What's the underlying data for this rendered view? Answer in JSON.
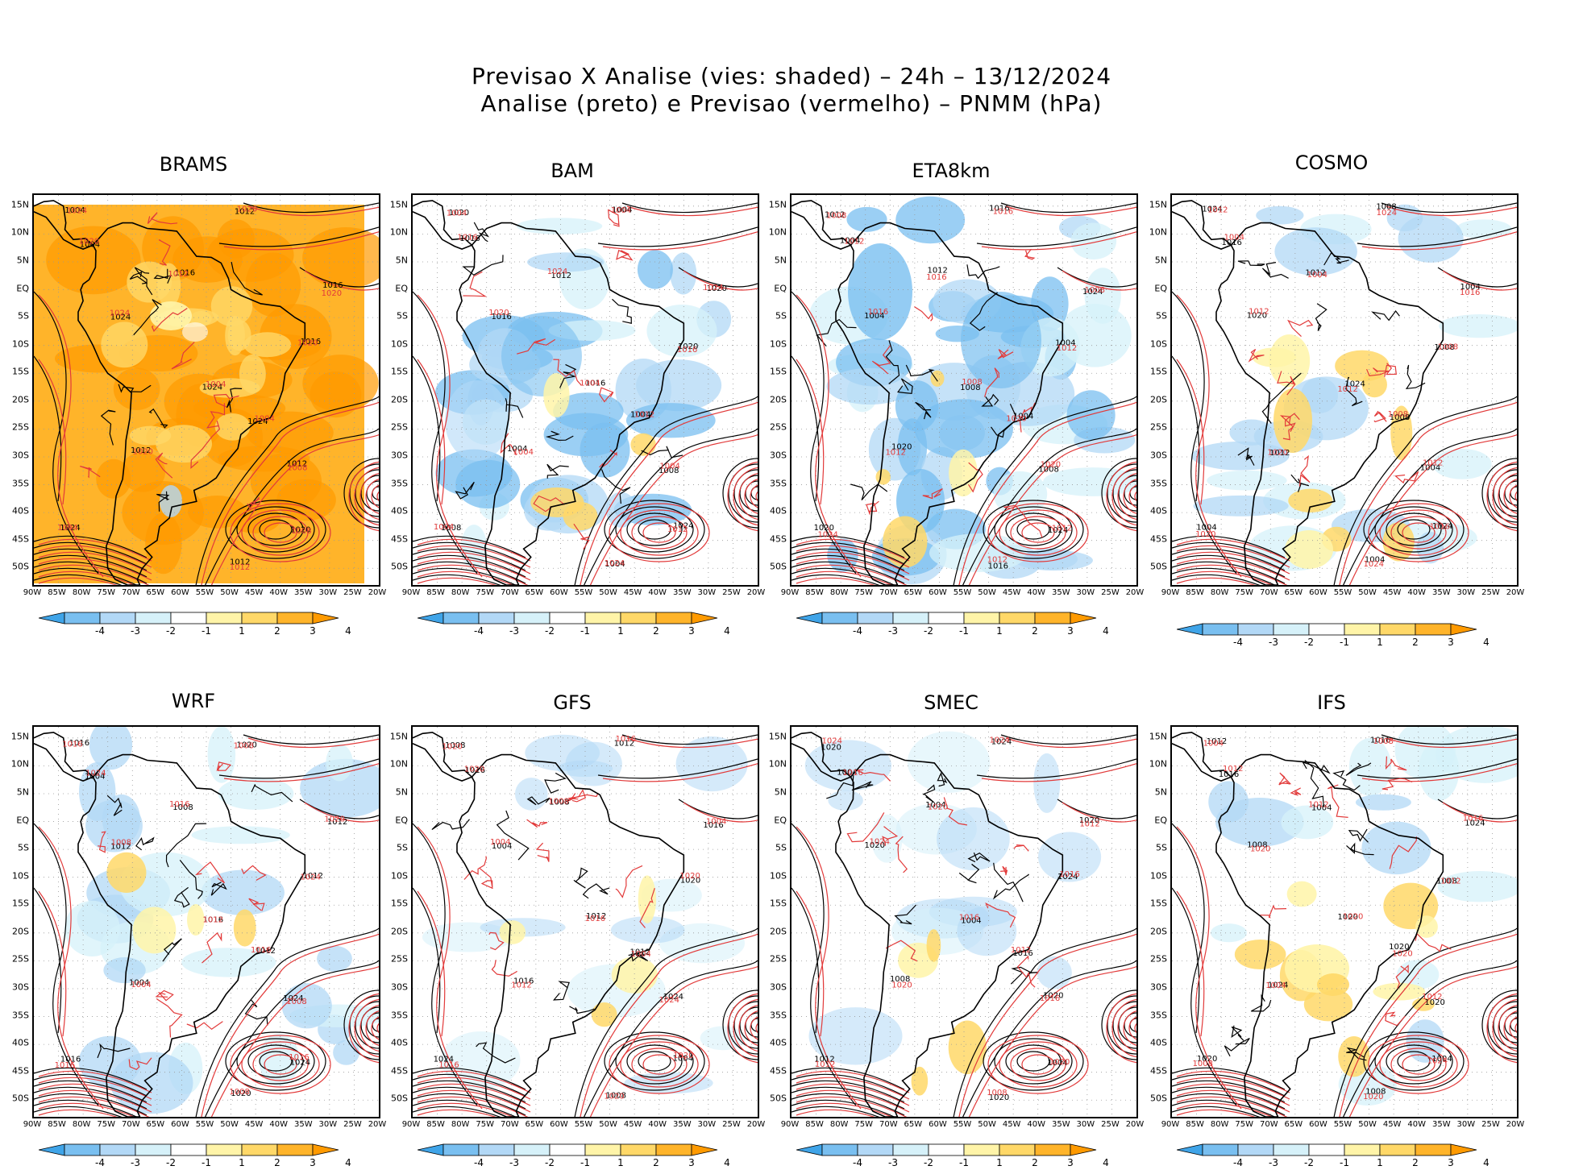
{
  "title": {
    "line1": "Previsao X Analise (vies: shaded) – 24h – 13/12/2024",
    "line2": "Analise (preto) e Previsao (vermelho) – PNMM (hPa)"
  },
  "lat_labels": [
    "15N",
    "10N",
    "5N",
    "EQ",
    "5S",
    "10S",
    "15S",
    "20S",
    "25S",
    "30S",
    "35S",
    "40S",
    "45S",
    "50S"
  ],
  "lon_labels": [
    "90W",
    "85W",
    "80W",
    "75W",
    "70W",
    "65W",
    "60W",
    "55W",
    "50W",
    "45W",
    "40W",
    "35W",
    "30W",
    "25W",
    "20W"
  ],
  "colorbar": {
    "labels": [
      "-4",
      "-3",
      "-2",
      "-1",
      "1",
      "2",
      "3",
      "4"
    ],
    "colors": [
      "#3fa4e8",
      "#79bff0",
      "#b2d8f6",
      "#d6f1f9",
      "#ffffff",
      "#fff4a8",
      "#ffd868",
      "#ffb42a",
      "#ff9a00"
    ]
  },
  "contour_colors": {
    "analysis": "#000000",
    "forecast": "#e23a3a"
  },
  "panels": [
    {
      "model": "BRAMS",
      "bias": "warm"
    },
    {
      "model": "BAM",
      "bias": "cool"
    },
    {
      "model": "ETA8km",
      "bias": "cool-strong"
    },
    {
      "model": "COSMO",
      "bias": "mixed"
    },
    {
      "model": "WRF",
      "bias": "mixed-cool"
    },
    {
      "model": "GFS",
      "bias": "light"
    },
    {
      "model": "SMEC",
      "bias": "light"
    },
    {
      "model": "IFS",
      "bias": "light-warm"
    }
  ],
  "contour_labels": [
    "1008",
    "1012",
    "1016",
    "1020",
    "1024",
    "1004"
  ]
}
